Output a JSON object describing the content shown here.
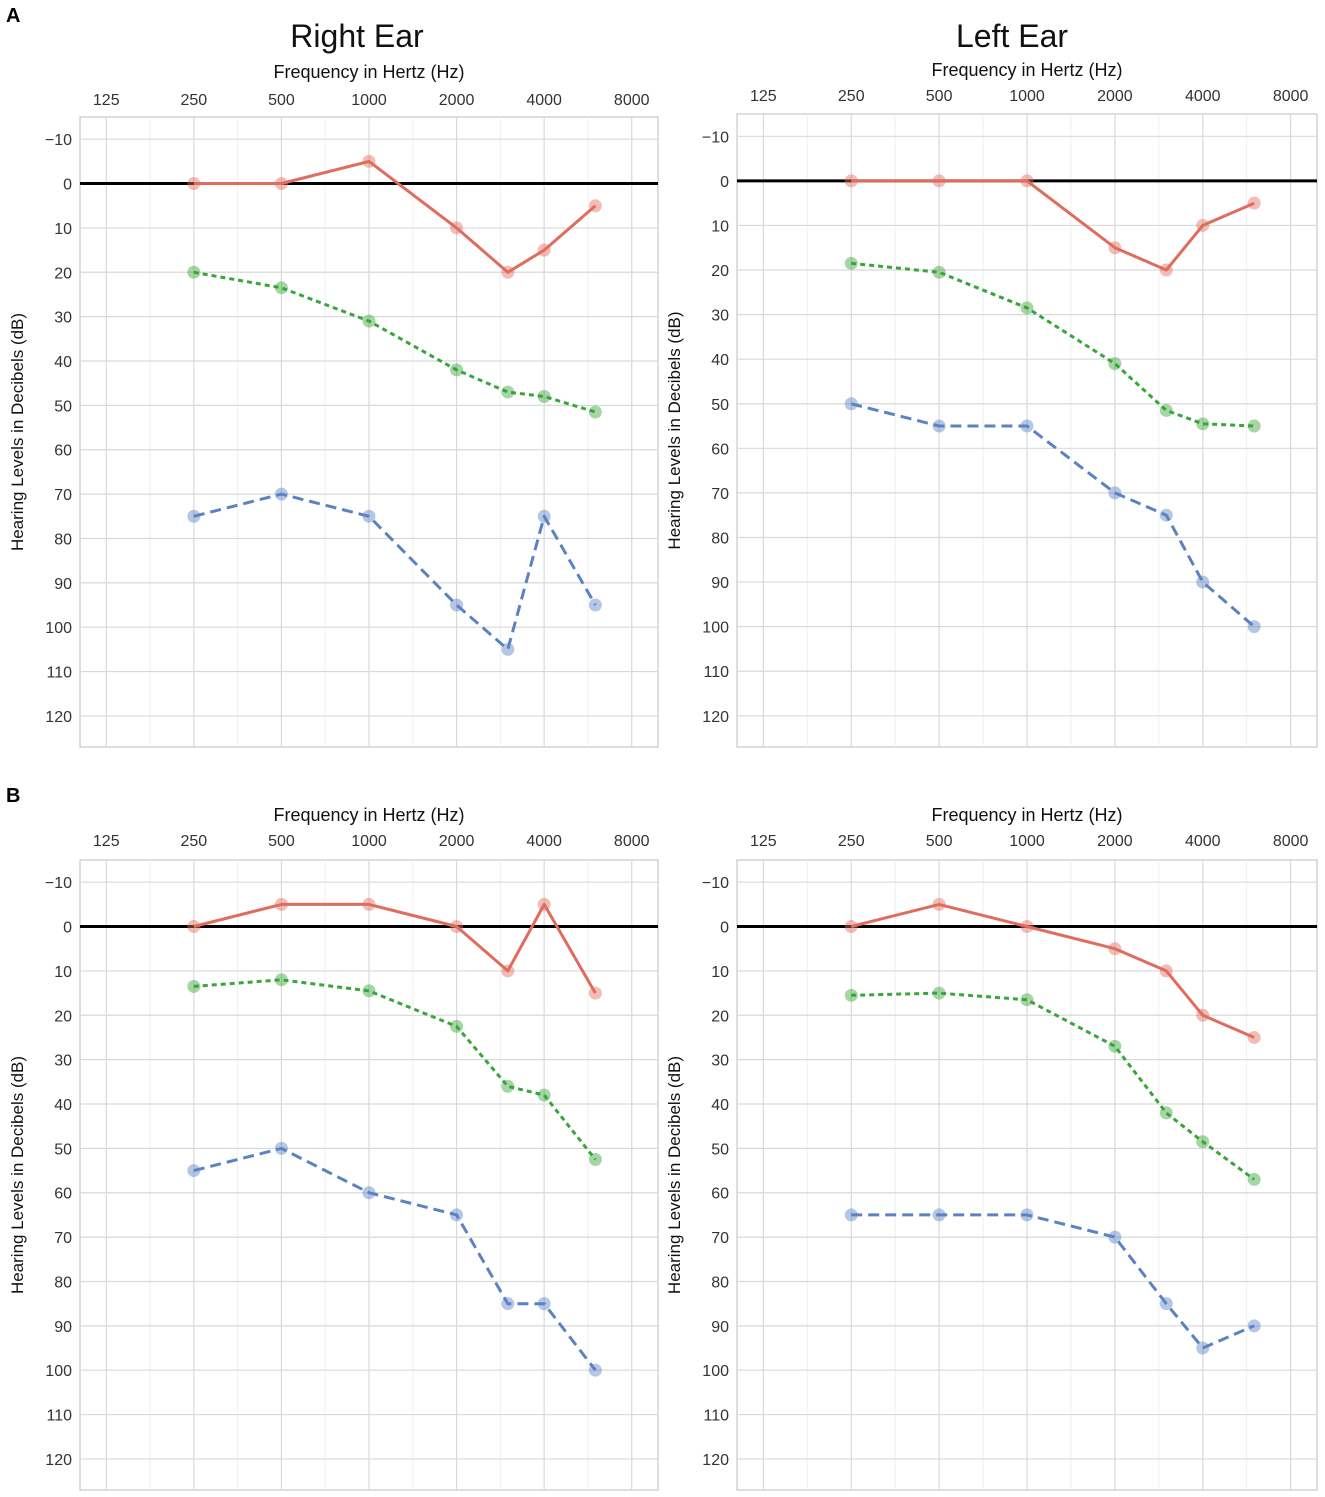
{
  "panel_labels": [
    "A",
    "B"
  ],
  "column_titles": [
    "Right Ear",
    "Left Ear"
  ],
  "colors": {
    "red": "#e06c5e",
    "green": "#3aa53a",
    "blue": "#5c82c4",
    "grid": "#d9d9d9",
    "reference": "#000000"
  },
  "chart_data": [
    {
      "type": "line",
      "panel": "A",
      "ear": "Right Ear",
      "xlabel": "Frequency in Hertz (Hz)",
      "ylabel": "Hearing Levels in Decibels (dB)",
      "x_scale": "log2",
      "x_ticks": [
        125,
        250,
        500,
        1000,
        2000,
        4000,
        8000
      ],
      "ylim": [
        -15,
        127
      ],
      "y_ticks": [
        -10,
        0,
        10,
        20,
        30,
        40,
        50,
        60,
        70,
        80,
        90,
        100,
        110,
        120
      ],
      "y_inverted": true,
      "reference_line": 0,
      "series": [
        {
          "color": "red",
          "style": "solid",
          "x": [
            250,
            500,
            1000,
            2000,
            3000,
            4000,
            6000
          ],
          "values": [
            0,
            0,
            -5,
            10,
            20,
            15,
            5
          ]
        },
        {
          "color": "green",
          "style": "dotted",
          "x": [
            250,
            500,
            1000,
            2000,
            3000,
            4000,
            6000
          ],
          "values": [
            20,
            23.5,
            31,
            42,
            47,
            48,
            51.5
          ]
        },
        {
          "color": "blue",
          "style": "dashed",
          "x": [
            250,
            500,
            1000,
            2000,
            3000,
            4000,
            6000
          ],
          "values": [
            75,
            70,
            75,
            95,
            105,
            75,
            95
          ]
        }
      ]
    },
    {
      "type": "line",
      "panel": "A",
      "ear": "Left Ear",
      "xlabel": "Frequency in Hertz (Hz)",
      "ylabel": "Hearing Levels in Decibels (dB)",
      "x_scale": "log2",
      "x_ticks": [
        125,
        250,
        500,
        1000,
        2000,
        4000,
        8000
      ],
      "ylim": [
        -15,
        127
      ],
      "y_ticks": [
        -10,
        0,
        10,
        20,
        30,
        40,
        50,
        60,
        70,
        80,
        90,
        100,
        110,
        120
      ],
      "y_inverted": true,
      "reference_line": 0,
      "series": [
        {
          "color": "red",
          "style": "solid",
          "x": [
            250,
            500,
            1000,
            2000,
            3000,
            4000,
            6000
          ],
          "values": [
            0,
            0,
            0,
            15,
            20,
            10,
            5
          ]
        },
        {
          "color": "green",
          "style": "dotted",
          "x": [
            250,
            500,
            1000,
            2000,
            3000,
            4000,
            6000
          ],
          "values": [
            18.5,
            20.5,
            28.5,
            41,
            51.5,
            54.5,
            55
          ]
        },
        {
          "color": "blue",
          "style": "dashed",
          "x": [
            250,
            500,
            1000,
            2000,
            3000,
            4000,
            6000
          ],
          "values": [
            50,
            55,
            55,
            70,
            75,
            90,
            100
          ]
        }
      ]
    },
    {
      "type": "line",
      "panel": "B",
      "ear": "Right Ear",
      "xlabel": "Frequency in Hertz (Hz)",
      "ylabel": "Hearing Levels in Decibels (dB)",
      "x_scale": "log2",
      "x_ticks": [
        125,
        250,
        500,
        1000,
        2000,
        4000,
        8000
      ],
      "ylim": [
        -15,
        127
      ],
      "y_ticks": [
        -10,
        0,
        10,
        20,
        30,
        40,
        50,
        60,
        70,
        80,
        90,
        100,
        110,
        120
      ],
      "y_inverted": true,
      "reference_line": 0,
      "series": [
        {
          "color": "red",
          "style": "solid",
          "x": [
            250,
            500,
            1000,
            2000,
            3000,
            4000,
            6000
          ],
          "values": [
            0,
            -5,
            -5,
            0,
            10,
            -5,
            15
          ]
        },
        {
          "color": "green",
          "style": "dotted",
          "x": [
            250,
            500,
            1000,
            2000,
            3000,
            4000,
            6000
          ],
          "values": [
            13.5,
            12,
            14.5,
            22.5,
            36,
            38,
            52.5
          ]
        },
        {
          "color": "blue",
          "style": "dashed",
          "x": [
            250,
            500,
            1000,
            2000,
            3000,
            4000,
            6000
          ],
          "values": [
            55,
            50,
            60,
            65,
            85,
            85,
            100
          ]
        }
      ]
    },
    {
      "type": "line",
      "panel": "B",
      "ear": "Left Ear",
      "xlabel": "Frequency in Hertz (Hz)",
      "ylabel": "Hearing Levels in Decibels (dB)",
      "x_scale": "log2",
      "x_ticks": [
        125,
        250,
        500,
        1000,
        2000,
        4000,
        8000
      ],
      "ylim": [
        -15,
        127
      ],
      "y_ticks": [
        -10,
        0,
        10,
        20,
        30,
        40,
        50,
        60,
        70,
        80,
        90,
        100,
        110,
        120
      ],
      "y_inverted": true,
      "reference_line": 0,
      "series": [
        {
          "color": "red",
          "style": "solid",
          "x": [
            250,
            500,
            1000,
            2000,
            3000,
            4000,
            6000
          ],
          "values": [
            0,
            -5,
            0,
            5,
            10,
            20,
            25
          ]
        },
        {
          "color": "green",
          "style": "dotted",
          "x": [
            250,
            500,
            1000,
            2000,
            3000,
            4000,
            6000
          ],
          "values": [
            15.5,
            15,
            16.5,
            27,
            42,
            48.5,
            57
          ]
        },
        {
          "color": "blue",
          "style": "dashed",
          "x": [
            250,
            500,
            1000,
            2000,
            3000,
            4000,
            6000
          ],
          "values": [
            65,
            65,
            65,
            70,
            85,
            95,
            90
          ]
        }
      ]
    }
  ]
}
